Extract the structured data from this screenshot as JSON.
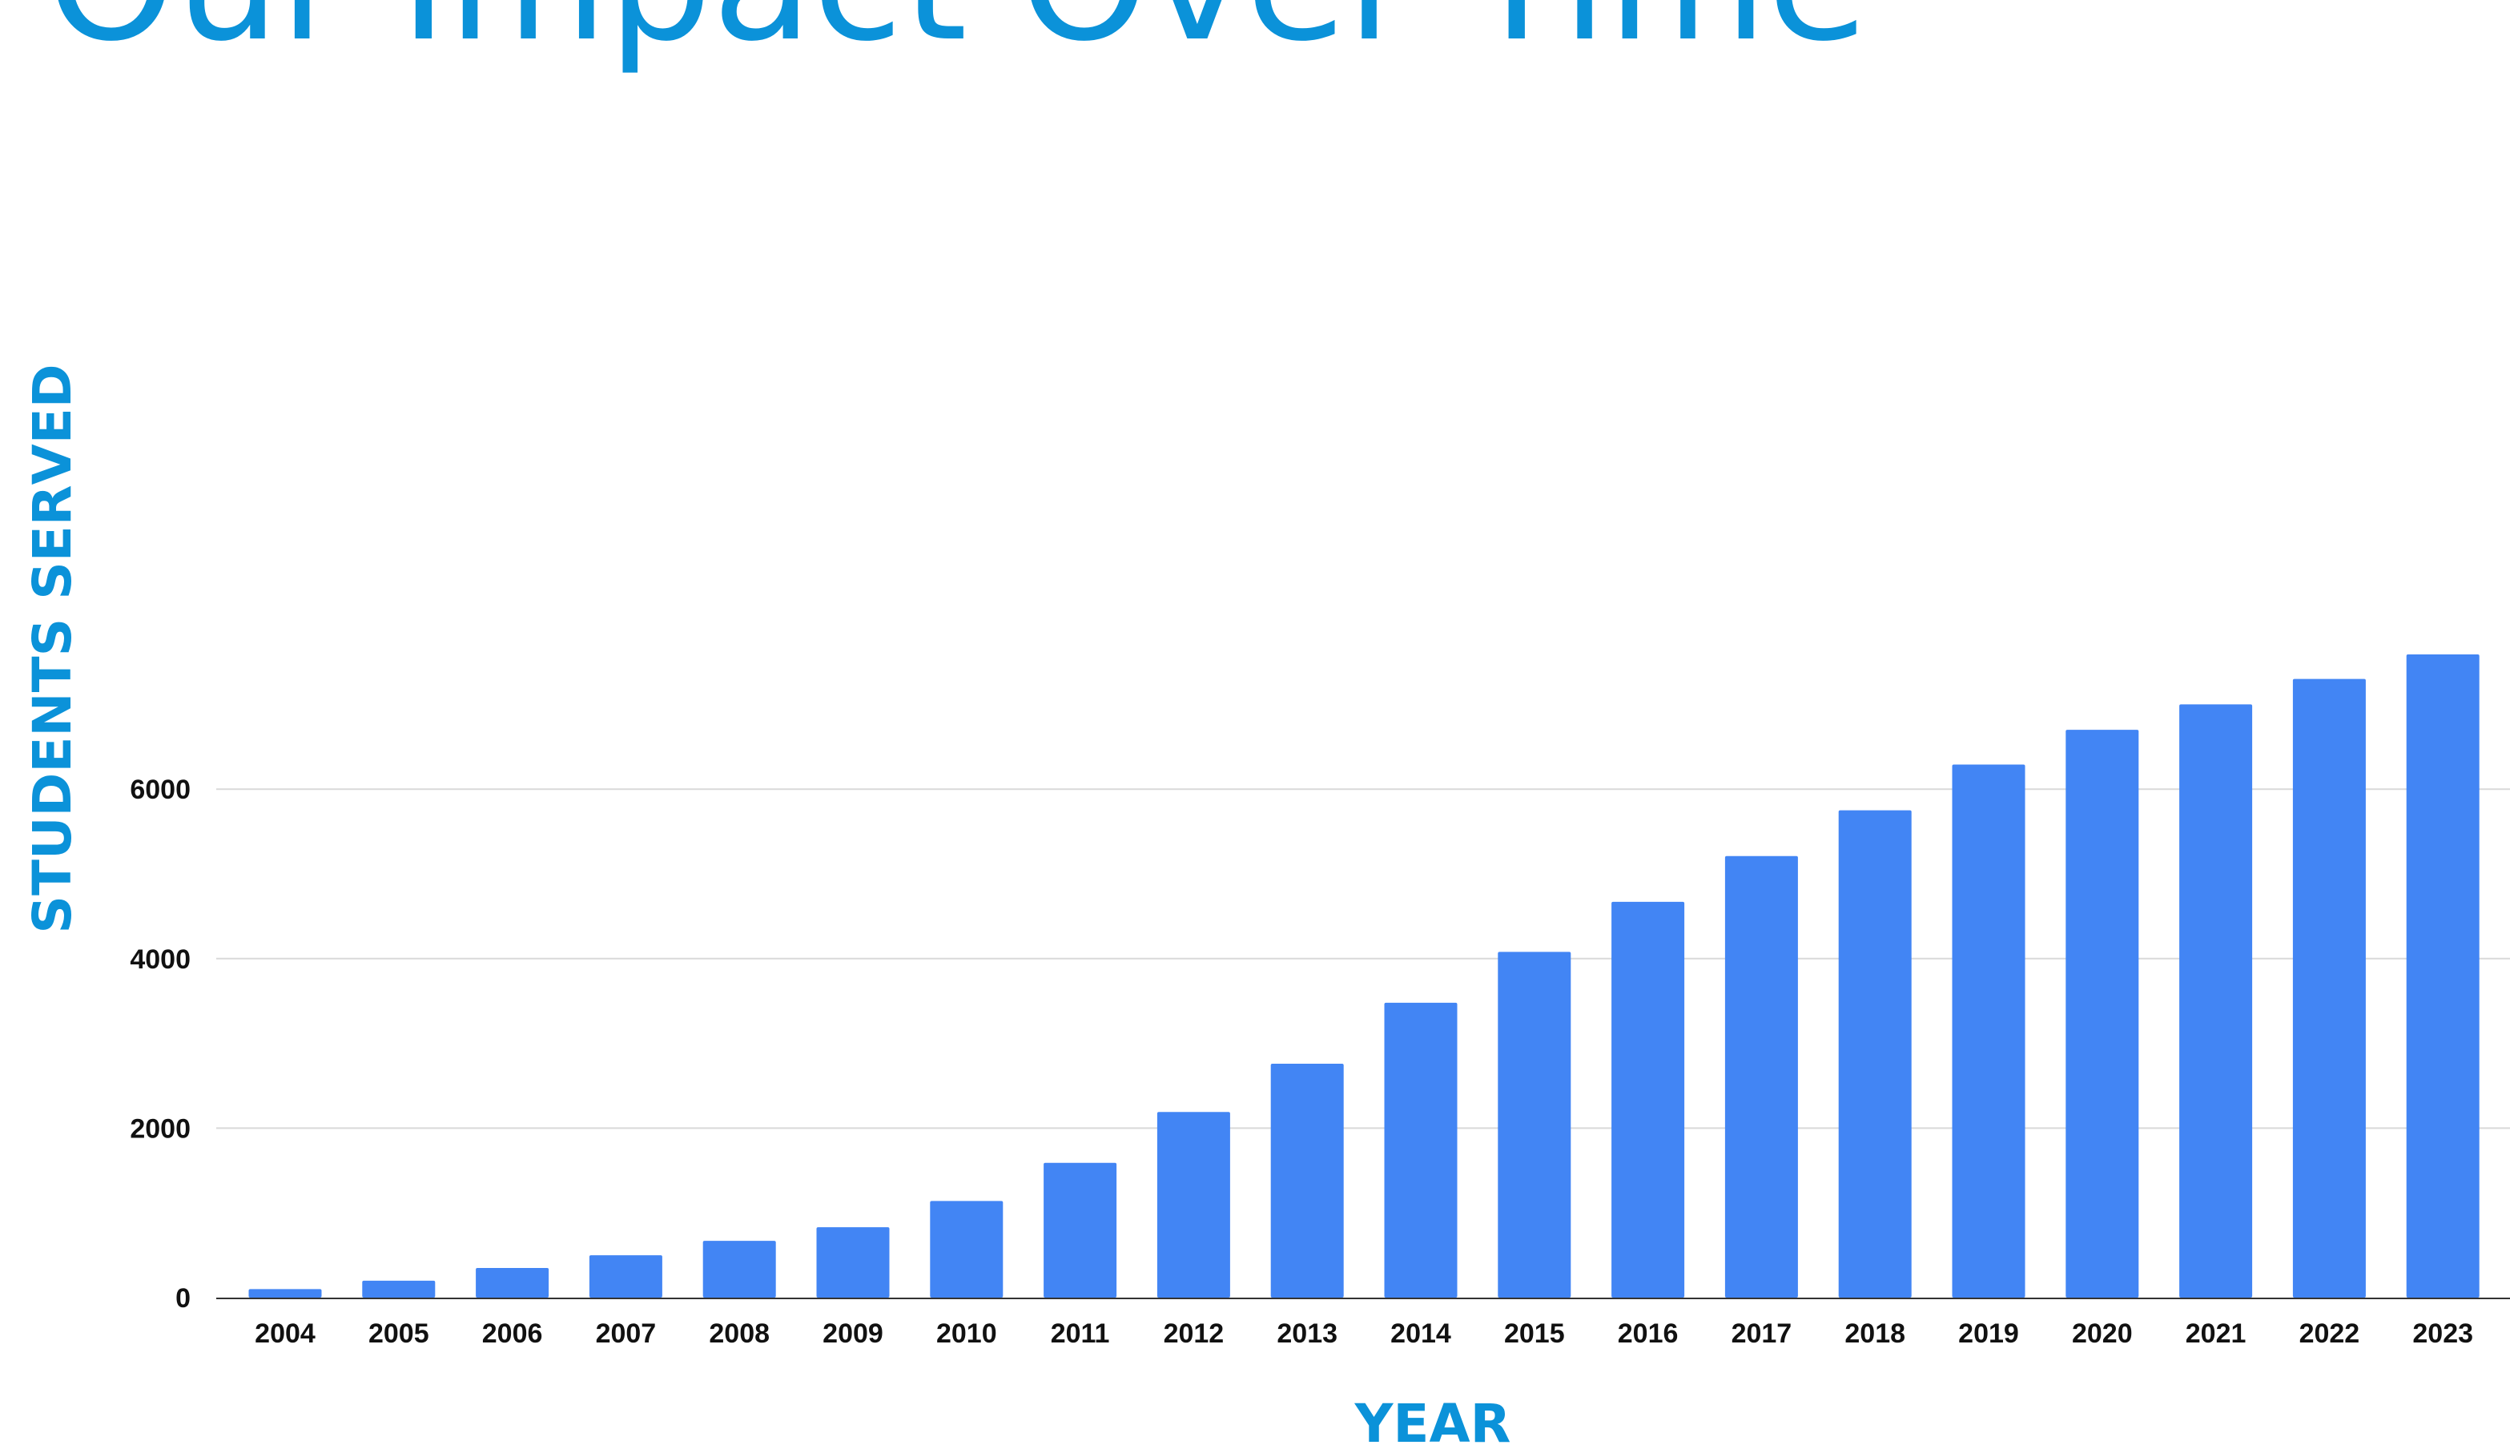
{
  "chart_data": {
    "type": "bar",
    "title": "Our Impact Over Time",
    "xlabel": "YEAR",
    "ylabel": "STUDENTS SERVED",
    "categories": [
      "2004",
      "2005",
      "2006",
      "2007",
      "2008",
      "2009",
      "2010",
      "2011",
      "2012",
      "2013",
      "2014",
      "2015",
      "2016",
      "2017",
      "2018",
      "2019",
      "2020",
      "2021",
      "2022",
      "2023"
    ],
    "series": [
      {
        "values": [
          100,
          200,
          350,
          500,
          670,
          830,
          1140,
          1590,
          2190,
          2760,
          3480,
          4080,
          4670,
          5210,
          5750,
          6290,
          6700,
          7000,
          7300,
          7590
        ]
      }
    ],
    "yticks": [
      0,
      2000,
      4000,
      6000
    ],
    "ylim": [
      0,
      7600
    ],
    "grid": true,
    "legend": "none",
    "colors": {
      "bar": "#4285f4",
      "title": "#0b92d9",
      "grid": "#d9d9d9",
      "axis": "#333333",
      "tick_text": "#111111"
    }
  }
}
